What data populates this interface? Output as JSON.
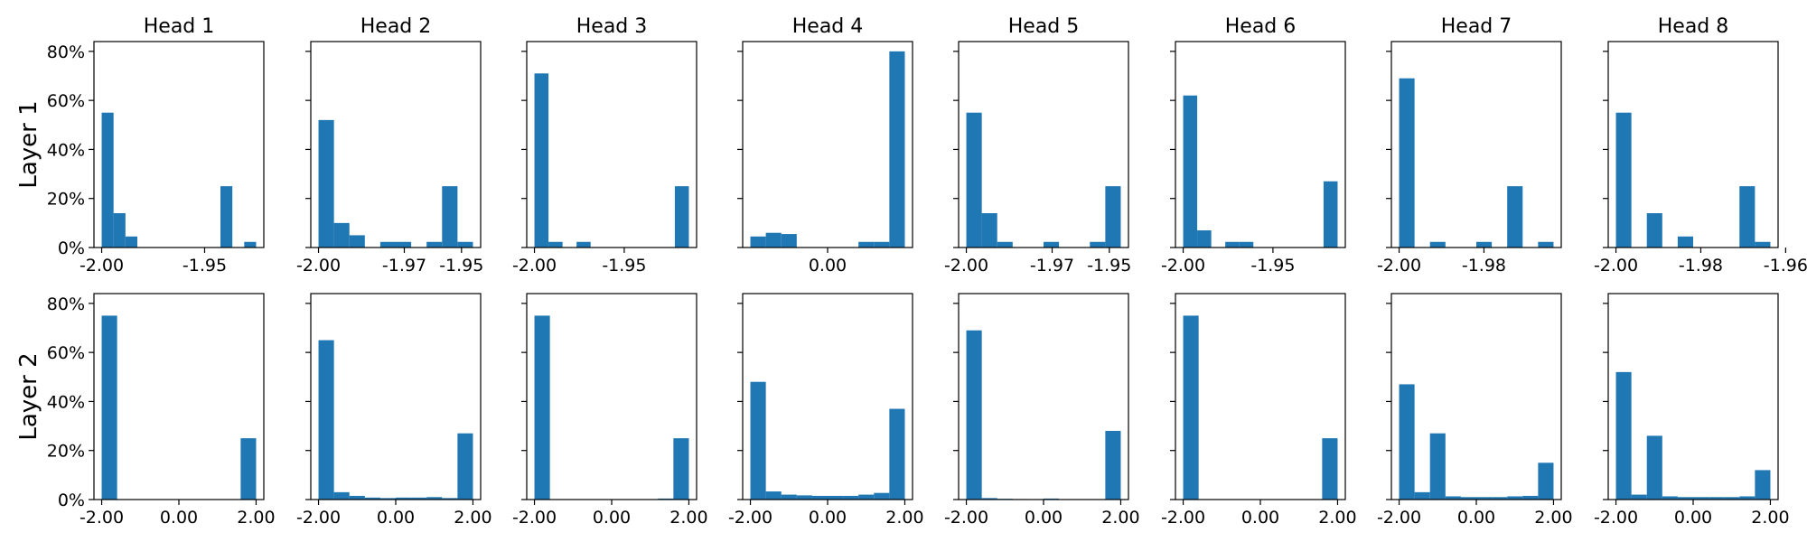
{
  "chart_data": [
    {
      "type": "bar",
      "layer": "Layer 1",
      "head": "Head 1",
      "x_range": [
        -2.0,
        -1.925
      ],
      "xticks": [
        "-2.00",
        "-1.95"
      ],
      "values": [
        55,
        14,
        4.5,
        0,
        0,
        0,
        0,
        0,
        0,
        0,
        25,
        0,
        2.3
      ],
      "ylim": [
        0,
        84
      ]
    },
    {
      "type": "bar",
      "layer": "Layer 1",
      "head": "Head 2",
      "x_range": [
        -2.0,
        -1.946
      ],
      "xticks": [
        "-2.00",
        "-1.97",
        "-1.95"
      ],
      "values": [
        52,
        10,
        5,
        0,
        2.3,
        2.3,
        0,
        2.3,
        25,
        2.3
      ],
      "ylim": [
        0,
        84
      ]
    },
    {
      "type": "bar",
      "layer": "Layer 1",
      "head": "Head 3",
      "x_range": [
        -2.0,
        -1.914
      ],
      "xticks": [
        "-2.00",
        "-1.95"
      ],
      "values": [
        71,
        2.3,
        0,
        2.3,
        0,
        0,
        0,
        0,
        0,
        0,
        25
      ],
      "ylim": [
        0,
        84
      ]
    },
    {
      "type": "bar",
      "layer": "Layer 1",
      "head": "Head 4",
      "x_range": [
        -2.0,
        2.0
      ],
      "xticks": [
        "0.00"
      ],
      "values": [
        4.5,
        6,
        5.5,
        0,
        0,
        0,
        0,
        2.3,
        2.3,
        80
      ],
      "ylim": [
        0,
        84
      ]
    },
    {
      "type": "bar",
      "layer": "Layer 1",
      "head": "Head 5",
      "x_range": [
        -2.0,
        -1.946
      ],
      "xticks": [
        "-2.00",
        "-1.97",
        "-1.95"
      ],
      "values": [
        55,
        14,
        2.3,
        0,
        0,
        2.3,
        0,
        0,
        2.3,
        25
      ],
      "ylim": [
        0,
        84
      ]
    },
    {
      "type": "bar",
      "layer": "Layer 1",
      "head": "Head 6",
      "x_range": [
        -2.0,
        -1.914
      ],
      "xticks": [
        "-2.00",
        "-1.95"
      ],
      "values": [
        62,
        7,
        0,
        2.3,
        2.3,
        0,
        0,
        0,
        0,
        0,
        27
      ],
      "ylim": [
        0,
        84
      ]
    },
    {
      "type": "bar",
      "layer": "Layer 1",
      "head": "Head 7",
      "x_range": [
        -2.0,
        -1.9636
      ],
      "xticks": [
        "-2.00",
        "-1.98"
      ],
      "values": [
        69,
        0,
        2.3,
        0,
        0,
        2.3,
        0,
        25,
        0,
        2.3
      ],
      "ylim": [
        0,
        84
      ]
    },
    {
      "type": "bar",
      "layer": "Layer 1",
      "head": "Head 8",
      "x_range": [
        -2.0,
        -1.9636
      ],
      "xticks": [
        "-2.00",
        "-1.98",
        "-1.96"
      ],
      "values": [
        55,
        0,
        14,
        0,
        4.5,
        0,
        0,
        0,
        25,
        2.3
      ],
      "ylim": [
        0,
        84
      ]
    },
    {
      "type": "bar",
      "layer": "Layer 2",
      "head": "Head 1",
      "x_range": [
        -2.0,
        2.0
      ],
      "xticks": [
        "-2.00",
        "0.00",
        "2.00"
      ],
      "values": [
        75,
        0,
        0,
        0,
        0,
        0,
        0,
        0,
        0,
        25
      ],
      "ylim": [
        0,
        84
      ]
    },
    {
      "type": "bar",
      "layer": "Layer 2",
      "head": "Head 2",
      "x_range": [
        -2.0,
        2.0
      ],
      "xticks": [
        "-2.00",
        "0.00",
        "2.00"
      ],
      "values": [
        65,
        3,
        1.5,
        0.8,
        0.6,
        0.8,
        0.8,
        1,
        0.6,
        27
      ],
      "ylim": [
        0,
        84
      ]
    },
    {
      "type": "bar",
      "layer": "Layer 2",
      "head": "Head 3",
      "x_range": [
        -2.0,
        2.0
      ],
      "xticks": [
        "-2.00",
        "0.00",
        "2.00"
      ],
      "values": [
        75,
        0,
        0,
        0,
        0,
        0,
        0,
        0,
        0.4,
        25
      ],
      "ylim": [
        0,
        84
      ]
    },
    {
      "type": "bar",
      "layer": "Layer 2",
      "head": "Head 4",
      "x_range": [
        -2.0,
        2.0
      ],
      "xticks": [
        "-2.00",
        "0.00",
        "2.00"
      ],
      "values": [
        48,
        3.3,
        2,
        1.7,
        1.5,
        1.5,
        1.5,
        2,
        2.7,
        37
      ],
      "ylim": [
        0,
        84
      ]
    },
    {
      "type": "bar",
      "layer": "Layer 2",
      "head": "Head 5",
      "x_range": [
        -2.0,
        2.0
      ],
      "xticks": [
        "-2.00",
        "0.00",
        "2.00"
      ],
      "values": [
        69,
        0.6,
        0.3,
        0.2,
        0,
        0.4,
        0,
        0,
        0,
        28
      ],
      "ylim": [
        0,
        84
      ]
    },
    {
      "type": "bar",
      "layer": "Layer 2",
      "head": "Head 6",
      "x_range": [
        -2.0,
        2.0
      ],
      "xticks": [
        "-2.00",
        "0.00",
        "2.00"
      ],
      "values": [
        75,
        0,
        0,
        0,
        0,
        0,
        0,
        0,
        0,
        25
      ],
      "ylim": [
        0,
        84
      ]
    },
    {
      "type": "bar",
      "layer": "Layer 2",
      "head": "Head 7",
      "x_range": [
        -2.0,
        2.0
      ],
      "xticks": [
        "-2.00",
        "0.00",
        "2.00"
      ],
      "values": [
        47,
        3,
        27,
        1.3,
        1,
        1,
        1,
        1.3,
        1.5,
        15
      ],
      "ylim": [
        0,
        84
      ]
    },
    {
      "type": "bar",
      "layer": "Layer 2",
      "head": "Head 8",
      "x_range": [
        -2.0,
        2.0
      ],
      "xticks": [
        "-2.00",
        "0.00",
        "2.00"
      ],
      "values": [
        52,
        2,
        26,
        1.3,
        1,
        1,
        1,
        1,
        1.3,
        12
      ],
      "ylim": [
        0,
        84
      ]
    }
  ],
  "yticks": [
    "0%",
    "20%",
    "40%",
    "60%",
    "80%"
  ],
  "ytick_values": [
    0,
    20,
    40,
    60,
    80
  ],
  "head_titles": [
    "Head 1",
    "Head 2",
    "Head 3",
    "Head 4",
    "Head 5",
    "Head 6",
    "Head 7",
    "Head 8"
  ],
  "layer_labels": [
    "Layer 1",
    "Layer 2"
  ],
  "bar_color": "#1f77b4"
}
